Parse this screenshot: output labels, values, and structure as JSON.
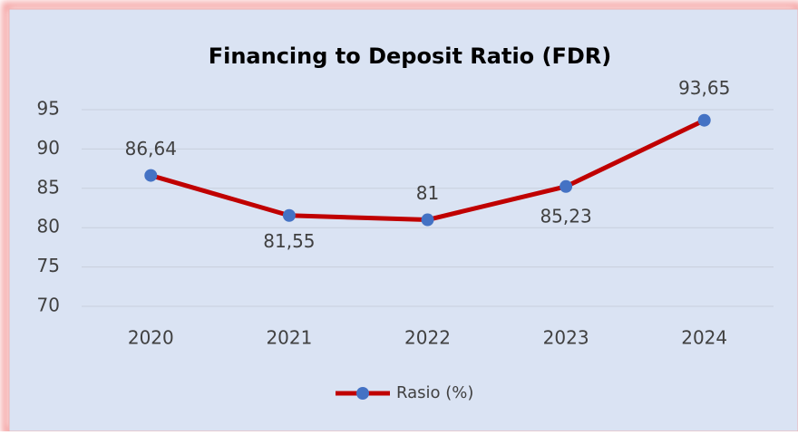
{
  "chart_data": {
    "type": "line",
    "title": "Financing to Deposit Ratio (FDR)",
    "categories": [
      "2020",
      "2021",
      "2022",
      "2023",
      "2024"
    ],
    "series": [
      {
        "name": "Rasio (%)",
        "color": "#c00000",
        "marker_color": "#4472c4",
        "values": [
          86.64,
          81.55,
          81,
          85.23,
          93.65
        ],
        "value_labels": [
          "86,64",
          "81,55",
          "81",
          "85,23",
          "93,65"
        ]
      }
    ],
    "ylim": [
      70,
      95
    ],
    "yticks": [
      70,
      75,
      80,
      85,
      90,
      95
    ],
    "grid": true,
    "legend": "bottom"
  }
}
